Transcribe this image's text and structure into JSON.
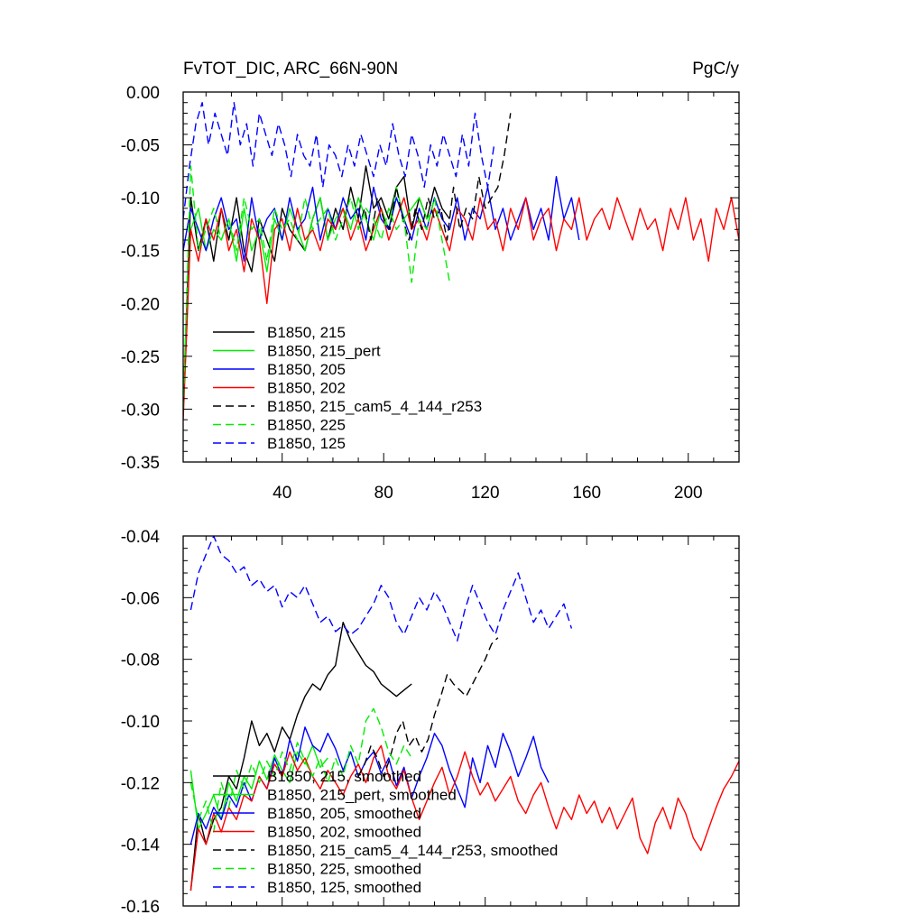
{
  "chart_data": [
    {
      "type": "line",
      "title": "FvTOT_DIC, ARC_66N-90N",
      "units": "PgC/y",
      "xlim": [
        1,
        220
      ],
      "ylim": [
        -0.35,
        0.0
      ],
      "x_ticks": [
        40,
        80,
        120,
        160,
        200
      ],
      "x_tick_labels": [
        "40",
        "80",
        "120",
        "160",
        "200"
      ],
      "y_ticks": [
        0.0,
        -0.05,
        -0.1,
        -0.15,
        -0.2,
        -0.25,
        -0.3,
        -0.35
      ],
      "y_tick_labels": [
        "0.00",
        "-0.05",
        "-0.10",
        "-0.15",
        "-0.20",
        "-0.25",
        "-0.30",
        "-0.35"
      ],
      "legend_position": "lower-left",
      "series": [
        {
          "name": "B1850, 215",
          "color": "#000000",
          "dash": "solid",
          "x_start": 1,
          "step": 3,
          "values": [
            -0.3,
            -0.1,
            -0.15,
            -0.12,
            -0.16,
            -0.11,
            -0.14,
            -0.1,
            -0.15,
            -0.17,
            -0.12,
            -0.14,
            -0.16,
            -0.11,
            -0.13,
            -0.14,
            -0.15,
            -0.12,
            -0.1,
            -0.14,
            -0.11,
            -0.13,
            -0.09,
            -0.12,
            -0.07,
            -0.11,
            -0.1,
            -0.12,
            -0.09,
            -0.08,
            -0.13,
            -0.1,
            -0.12,
            -0.09,
            -0.11,
            -0.12
          ]
        },
        {
          "name": "B1850, 215_pert",
          "color": "#00ee00",
          "dash": "solid",
          "x_start": 1,
          "step": 3,
          "values": [
            -0.29,
            -0.13,
            -0.11,
            -0.15,
            -0.13,
            -0.14,
            -0.12,
            -0.16,
            -0.11,
            -0.15,
            -0.13,
            -0.17,
            -0.12,
            -0.14,
            -0.11,
            -0.13,
            -0.15,
            -0.12,
            -0.1,
            -0.14,
            -0.12,
            -0.11,
            -0.13,
            -0.1,
            -0.12,
            -0.14,
            -0.11,
            -0.13,
            -0.09,
            -0.12,
            -0.11,
            -0.1,
            -0.12,
            -0.11,
            -0.13
          ]
        },
        {
          "name": "B1850, 205",
          "color": "#0000ff",
          "dash": "solid",
          "x_start": 1,
          "step": 3,
          "values": [
            -0.15,
            -0.11,
            -0.13,
            -0.15,
            -0.12,
            -0.1,
            -0.13,
            -0.12,
            -0.16,
            -0.1,
            -0.14,
            -0.12,
            -0.11,
            -0.14,
            -0.1,
            -0.13,
            -0.12,
            -0.09,
            -0.14,
            -0.11,
            -0.13,
            -0.1,
            -0.12,
            -0.11,
            -0.14,
            -0.09,
            -0.12,
            -0.13,
            -0.1,
            -0.12,
            -0.14,
            -0.11,
            -0.13,
            -0.1,
            -0.12,
            -0.13,
            -0.1,
            -0.14,
            -0.11,
            -0.12,
            -0.09,
            -0.13,
            -0.11,
            -0.14,
            -0.12,
            -0.1,
            -0.13,
            -0.11,
            -0.14,
            -0.08,
            -0.12,
            -0.1,
            -0.14
          ]
        },
        {
          "name": "B1850, 202",
          "color": "#ff0000",
          "dash": "solid",
          "x_start": 1,
          "step": 3,
          "values": [
            -0.31,
            -0.13,
            -0.16,
            -0.12,
            -0.14,
            -0.11,
            -0.15,
            -0.13,
            -0.17,
            -0.12,
            -0.14,
            -0.2,
            -0.13,
            -0.12,
            -0.15,
            -0.11,
            -0.14,
            -0.13,
            -0.15,
            -0.12,
            -0.13,
            -0.11,
            -0.14,
            -0.12,
            -0.15,
            -0.13,
            -0.11,
            -0.14,
            -0.12,
            -0.1,
            -0.13,
            -0.12,
            -0.14,
            -0.11,
            -0.13,
            -0.15,
            -0.11,
            -0.12,
            -0.14,
            -0.1,
            -0.13,
            -0.12,
            -0.15,
            -0.11,
            -0.13,
            -0.1,
            -0.14,
            -0.12,
            -0.11,
            -0.15,
            -0.12,
            -0.13,
            -0.1,
            -0.14,
            -0.12,
            -0.11,
            -0.13,
            -0.1,
            -0.12,
            -0.14,
            -0.11,
            -0.13,
            -0.12,
            -0.15,
            -0.11,
            -0.13,
            -0.1,
            -0.14,
            -0.12,
            -0.16,
            -0.11,
            -0.13,
            -0.1,
            -0.14,
            -0.12
          ]
        },
        {
          "name": "B1850, 215_cam5_4_144_r253",
          "color": "#000000",
          "dash": "dashed",
          "x_start": 70,
          "step": 2.5,
          "values": [
            -0.13,
            -0.11,
            -0.14,
            -0.1,
            -0.12,
            -0.13,
            -0.09,
            -0.12,
            -0.14,
            -0.11,
            -0.13,
            -0.1,
            -0.12,
            -0.11,
            -0.14,
            -0.09,
            -0.13,
            -0.11,
            -0.12,
            -0.08,
            -0.11,
            -0.1,
            -0.09,
            -0.06,
            -0.02
          ]
        },
        {
          "name": "B1850, 225",
          "color": "#00ee00",
          "dash": "dashed",
          "x_start": 1,
          "step": 3,
          "values": [
            -0.3,
            -0.07,
            -0.15,
            -0.13,
            -0.11,
            -0.14,
            -0.12,
            -0.15,
            -0.1,
            -0.13,
            -0.12,
            -0.16,
            -0.11,
            -0.13,
            -0.12,
            -0.14,
            -0.1,
            -0.13,
            -0.12,
            -0.11,
            -0.14,
            -0.12,
            -0.1,
            -0.13,
            -0.11,
            -0.12,
            -0.14,
            -0.11,
            -0.13,
            -0.12,
            -0.18,
            -0.12,
            -0.13,
            -0.1,
            -0.14,
            -0.18
          ]
        },
        {
          "name": "B1850, 125",
          "color": "#0000ff",
          "dash": "dashed",
          "x_start": 1,
          "step": 2.5,
          "values": [
            -0.12,
            -0.07,
            -0.03,
            -0.01,
            -0.05,
            -0.02,
            -0.04,
            -0.06,
            -0.01,
            -0.05,
            -0.03,
            -0.07,
            -0.02,
            -0.04,
            -0.06,
            -0.03,
            -0.05,
            -0.08,
            -0.04,
            -0.06,
            -0.07,
            -0.04,
            -0.09,
            -0.05,
            -0.06,
            -0.08,
            -0.05,
            -0.07,
            -0.04,
            -0.06,
            -0.08,
            -0.05,
            -0.07,
            -0.03,
            -0.06,
            -0.08,
            -0.04,
            -0.06,
            -0.09,
            -0.05,
            -0.07,
            -0.04,
            -0.06,
            -0.08,
            -0.04,
            -0.07,
            -0.02,
            -0.06,
            -0.09,
            -0.05
          ]
        }
      ]
    },
    {
      "type": "line",
      "title": "",
      "xlim": [
        1,
        220
      ],
      "ylim": [
        -0.16,
        -0.04
      ],
      "y_ticks": [
        -0.04,
        -0.06,
        -0.08,
        -0.1,
        -0.12,
        -0.14,
        -0.16
      ],
      "y_tick_labels": [
        "-0.04",
        "-0.06",
        "-0.08",
        "-0.10",
        "-0.12",
        "-0.14",
        "-0.16"
      ],
      "legend_position": "lower-left",
      "series": [
        {
          "name": "B1850, 215, smoothed",
          "color": "#000000",
          "dash": "solid",
          "x_start": 4,
          "step": 3,
          "values": [
            -0.155,
            -0.13,
            -0.14,
            -0.132,
            -0.128,
            -0.118,
            -0.122,
            -0.112,
            -0.1,
            -0.108,
            -0.104,
            -0.11,
            -0.102,
            -0.106,
            -0.098,
            -0.092,
            -0.088,
            -0.09,
            -0.085,
            -0.082,
            -0.068,
            -0.074,
            -0.078,
            -0.082,
            -0.084,
            -0.088,
            -0.09,
            -0.092,
            -0.09,
            -0.088
          ]
        },
        {
          "name": "B1850, 215_pert, smoothed",
          "color": "#00ee00",
          "dash": "solid",
          "x_start": 4,
          "step": 3,
          "values": [
            -0.116,
            -0.135,
            -0.13,
            -0.124,
            -0.132,
            -0.12,
            -0.126,
            -0.118,
            -0.122,
            -0.113,
            -0.119,
            -0.111,
            -0.116,
            -0.12,
            -0.11,
            -0.114,
            -0.108,
            -0.115,
            -0.112
          ]
        },
        {
          "name": "B1850, 205, smoothed",
          "color": "#0000ff",
          "dash": "solid",
          "x_start": 4,
          "step": 3,
          "values": [
            -0.14,
            -0.13,
            -0.135,
            -0.128,
            -0.132,
            -0.124,
            -0.128,
            -0.12,
            -0.126,
            -0.118,
            -0.122,
            -0.112,
            -0.118,
            -0.106,
            -0.113,
            -0.102,
            -0.108,
            -0.11,
            -0.104,
            -0.109,
            -0.116,
            -0.11,
            -0.118,
            -0.113,
            -0.11,
            -0.117,
            -0.112,
            -0.121,
            -0.115,
            -0.125,
            -0.118,
            -0.112,
            -0.104,
            -0.108,
            -0.116,
            -0.122,
            -0.128,
            -0.112,
            -0.12,
            -0.108,
            -0.115,
            -0.104,
            -0.11,
            -0.118,
            -0.112,
            -0.105,
            -0.115,
            -0.12
          ]
        },
        {
          "name": "B1850, 202, smoothed",
          "color": "#ff0000",
          "dash": "solid",
          "x_start": 4,
          "step": 3,
          "values": [
            -0.155,
            -0.135,
            -0.14,
            -0.13,
            -0.136,
            -0.128,
            -0.132,
            -0.124,
            -0.126,
            -0.118,
            -0.122,
            -0.114,
            -0.118,
            -0.11,
            -0.116,
            -0.112,
            -0.118,
            -0.122,
            -0.116,
            -0.12,
            -0.124,
            -0.118,
            -0.114,
            -0.12,
            -0.112,
            -0.108,
            -0.118,
            -0.122,
            -0.116,
            -0.125,
            -0.132,
            -0.126,
            -0.12,
            -0.115,
            -0.124,
            -0.118,
            -0.11,
            -0.118,
            -0.124,
            -0.12,
            -0.126,
            -0.122,
            -0.118,
            -0.126,
            -0.13,
            -0.124,
            -0.12,
            -0.128,
            -0.135,
            -0.128,
            -0.132,
            -0.124,
            -0.13,
            -0.126,
            -0.133,
            -0.128,
            -0.135,
            -0.13,
            -0.125,
            -0.138,
            -0.143,
            -0.133,
            -0.128,
            -0.135,
            -0.125,
            -0.13,
            -0.138,
            -0.142,
            -0.135,
            -0.128,
            -0.122,
            -0.118,
            -0.113,
            -0.126,
            -0.12,
            -0.117
          ]
        },
        {
          "name": "B1850, 215_cam5_4_144_r253, smoothed",
          "color": "#000000",
          "dash": "dashed",
          "x_start": 70,
          "step": 2.5,
          "values": [
            -0.118,
            -0.114,
            -0.108,
            -0.112,
            -0.118,
            -0.112,
            -0.104,
            -0.1,
            -0.108,
            -0.105,
            -0.11,
            -0.106,
            -0.098,
            -0.092,
            -0.085,
            -0.088,
            -0.09,
            -0.092,
            -0.088,
            -0.084,
            -0.08,
            -0.075,
            -0.073
          ]
        },
        {
          "name": "B1850, 225, smoothed",
          "color": "#00ee00",
          "dash": "dashed",
          "x_start": 4,
          "step": 3,
          "values": [
            -0.12,
            -0.132,
            -0.126,
            -0.136,
            -0.12,
            -0.128,
            -0.116,
            -0.122,
            -0.114,
            -0.12,
            -0.113,
            -0.118,
            -0.11,
            -0.116,
            -0.107,
            -0.113,
            -0.118,
            -0.112,
            -0.12,
            -0.112,
            -0.118,
            -0.108,
            -0.114,
            -0.1,
            -0.096,
            -0.102,
            -0.11,
            -0.114,
            -0.108,
            -0.112
          ]
        },
        {
          "name": "B1850, 125, smoothed",
          "color": "#0000ff",
          "dash": "dashed",
          "x_start": 4,
          "step": 3,
          "values": [
            -0.064,
            -0.052,
            -0.046,
            -0.04,
            -0.046,
            -0.048,
            -0.052,
            -0.05,
            -0.056,
            -0.054,
            -0.058,
            -0.056,
            -0.063,
            -0.058,
            -0.06,
            -0.056,
            -0.062,
            -0.068,
            -0.066,
            -0.071,
            -0.069,
            -0.072,
            -0.07,
            -0.066,
            -0.062,
            -0.056,
            -0.06,
            -0.068,
            -0.072,
            -0.066,
            -0.06,
            -0.064,
            -0.058,
            -0.062,
            -0.068,
            -0.074,
            -0.064,
            -0.056,
            -0.062,
            -0.068,
            -0.072,
            -0.064,
            -0.058,
            -0.052,
            -0.06,
            -0.068,
            -0.064,
            -0.07,
            -0.066,
            -0.062,
            -0.07
          ]
        }
      ]
    }
  ]
}
